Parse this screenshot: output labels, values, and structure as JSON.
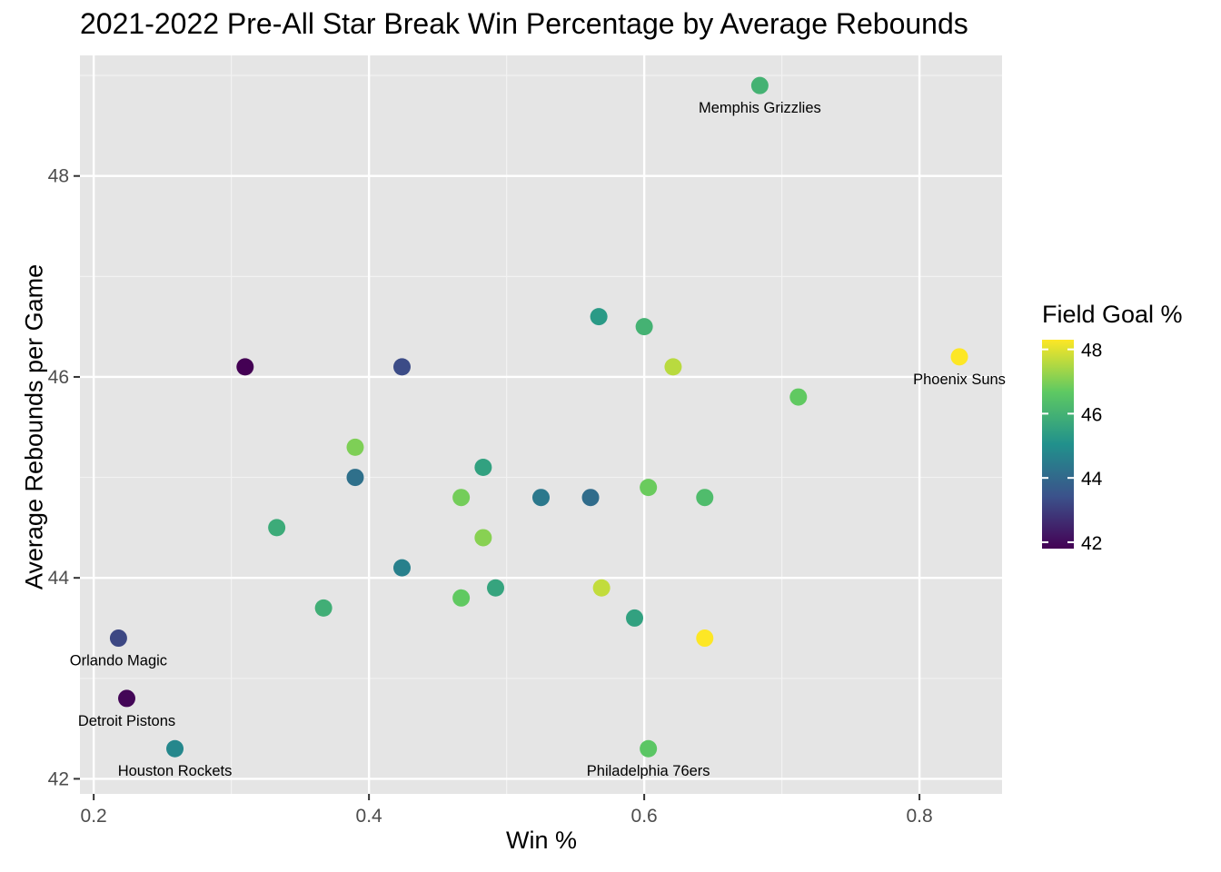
{
  "chart_data": {
    "type": "scatter",
    "title": "2021-2022 Pre-All Star Break Win Percentage by Average Rebounds",
    "xlabel": "Win %",
    "ylabel": "Average Rebounds per Game",
    "xlim": [
      0.19,
      0.86
    ],
    "ylim": [
      41.85,
      49.2
    ],
    "x_ticks": [
      0.2,
      0.4,
      0.6,
      0.8
    ],
    "x_tick_labels": [
      "0.2",
      "0.4",
      "0.6",
      "0.8"
    ],
    "y_ticks": [
      42,
      44,
      46,
      48
    ],
    "y_tick_labels": [
      "42",
      "44",
      "46",
      "48"
    ],
    "grid": true,
    "color": {
      "title": "Field Goal %",
      "range": [
        41.8,
        48.3
      ],
      "ticks": [
        42,
        44,
        46,
        48
      ],
      "tick_labels": [
        "42",
        "44",
        "46",
        "48"
      ],
      "palette": [
        "#440154",
        "#3b528b",
        "#21918c",
        "#5ec962",
        "#fde725"
      ]
    },
    "legend_position": "right",
    "points": [
      {
        "x": 0.684,
        "y": 48.9,
        "fg": 46.0,
        "label": "Memphis Grizzlies"
      },
      {
        "x": 0.829,
        "y": 46.2,
        "fg": 48.3,
        "label": "Phoenix Suns"
      },
      {
        "x": 0.218,
        "y": 43.4,
        "fg": 43.2,
        "label": "Orlando Magic"
      },
      {
        "x": 0.224,
        "y": 42.8,
        "fg": 41.9,
        "label": "Detroit Pistons"
      },
      {
        "x": 0.259,
        "y": 42.3,
        "fg": 44.8,
        "label": "Houston Rockets"
      },
      {
        "x": 0.603,
        "y": 42.3,
        "fg": 46.6,
        "label": "Philadelphia 76ers"
      },
      {
        "x": 0.31,
        "y": 46.1,
        "fg": 41.8
      },
      {
        "x": 0.424,
        "y": 46.1,
        "fg": 43.3
      },
      {
        "x": 0.567,
        "y": 46.6,
        "fg": 45.3
      },
      {
        "x": 0.6,
        "y": 46.5,
        "fg": 46.0
      },
      {
        "x": 0.621,
        "y": 46.1,
        "fg": 47.6
      },
      {
        "x": 0.712,
        "y": 45.8,
        "fg": 46.7
      },
      {
        "x": 0.39,
        "y": 45.3,
        "fg": 47.0
      },
      {
        "x": 0.39,
        "y": 45.0,
        "fg": 44.2
      },
      {
        "x": 0.483,
        "y": 45.1,
        "fg": 45.5
      },
      {
        "x": 0.333,
        "y": 44.5,
        "fg": 45.8
      },
      {
        "x": 0.467,
        "y": 44.8,
        "fg": 46.9
      },
      {
        "x": 0.525,
        "y": 44.8,
        "fg": 44.4
      },
      {
        "x": 0.561,
        "y": 44.8,
        "fg": 44.1
      },
      {
        "x": 0.603,
        "y": 44.9,
        "fg": 46.8
      },
      {
        "x": 0.644,
        "y": 44.8,
        "fg": 46.3
      },
      {
        "x": 0.483,
        "y": 44.4,
        "fg": 47.1
      },
      {
        "x": 0.424,
        "y": 44.1,
        "fg": 44.6
      },
      {
        "x": 0.367,
        "y": 43.7,
        "fg": 45.9
      },
      {
        "x": 0.467,
        "y": 43.8,
        "fg": 46.7
      },
      {
        "x": 0.492,
        "y": 43.9,
        "fg": 45.6
      },
      {
        "x": 0.569,
        "y": 43.9,
        "fg": 47.7
      },
      {
        "x": 0.593,
        "y": 43.6,
        "fg": 45.5
      },
      {
        "x": 0.644,
        "y": 43.4,
        "fg": 48.3
      }
    ]
  }
}
